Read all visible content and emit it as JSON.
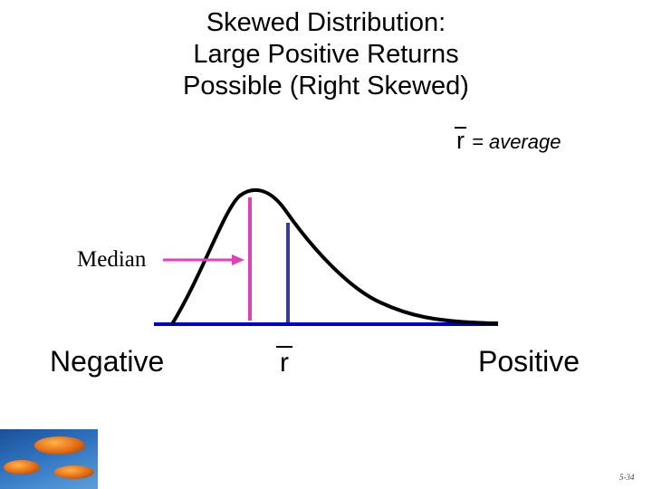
{
  "title": {
    "line1": "Skewed Distribution:",
    "line2": "Large Positive Returns",
    "line3": "Possible (Right Skewed)"
  },
  "legend": {
    "symbol": "r",
    "text": "= average"
  },
  "median_label": "Median",
  "axis": {
    "negative": "Negative",
    "positive": "Positive",
    "mean_symbol": "r"
  },
  "slide_number": "5-34",
  "colors": {
    "curve": "#000000",
    "axis": "#0000cc",
    "median": "#e23fb8",
    "mean": "#3a3a9a"
  },
  "photo": "orange stones on blue water"
}
